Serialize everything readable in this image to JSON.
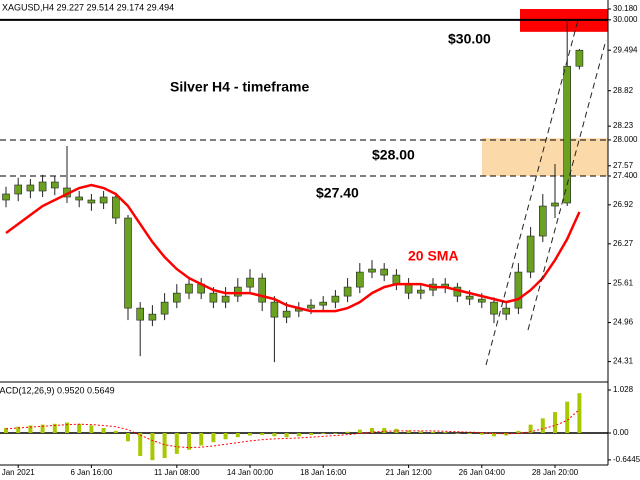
{
  "chart_data": [
    {
      "type": "candlestick",
      "header": "XAGUSD,H4  29.227 29.514 29.174 29.494",
      "title": "Silver H4 - timeframe",
      "categories": [
        null,
        "Jan 2021",
        null,
        null,
        null,
        null,
        null,
        "6 Jan 16:00",
        null,
        null,
        null,
        null,
        null,
        null,
        "11 Jan 08:00",
        null,
        null,
        null,
        null,
        null,
        "14 Jan 00:00",
        null,
        null,
        null,
        null,
        null,
        "18 Jan 16:00",
        null,
        null,
        null,
        null,
        null,
        null,
        "21 Jan 12:00",
        null,
        null,
        null,
        null,
        null,
        "26 Jan 04:00",
        null,
        null,
        null,
        null,
        null,
        "28 Jan 20:00",
        null,
        null
      ],
      "open": [
        27.0,
        27.1,
        27.25,
        27.15,
        27.3,
        27.2,
        27.05,
        27.0,
        26.95,
        27.05,
        26.7,
        25.2,
        25.0,
        25.1,
        25.3,
        25.45,
        25.6,
        25.45,
        25.3,
        25.4,
        25.55,
        25.7,
        25.3,
        25.05,
        25.15,
        25.2,
        25.25,
        25.3,
        25.4,
        25.55,
        25.8,
        25.85,
        25.75,
        25.6,
        25.45,
        25.5,
        25.6,
        25.55,
        25.4,
        25.35,
        25.3,
        25.1,
        25.2,
        25.8,
        26.4,
        26.9,
        26.95,
        29.227
      ],
      "high": [
        27.22,
        27.37,
        27.35,
        27.42,
        27.4,
        27.9,
        27.15,
        27.1,
        27.15,
        27.12,
        26.75,
        25.3,
        25.25,
        25.45,
        25.6,
        25.72,
        25.7,
        25.55,
        25.55,
        25.7,
        25.85,
        25.78,
        25.4,
        25.3,
        25.3,
        25.35,
        25.4,
        25.5,
        25.7,
        25.95,
        26.0,
        25.95,
        25.85,
        25.7,
        25.62,
        25.7,
        25.7,
        25.62,
        25.5,
        25.45,
        25.38,
        25.3,
        25.95,
        26.55,
        27.1,
        27.6,
        30.0,
        29.514
      ],
      "low": [
        26.88,
        26.98,
        27.03,
        27.05,
        27.08,
        26.95,
        26.88,
        26.82,
        26.85,
        26.6,
        25.0,
        24.4,
        24.9,
        25.0,
        25.2,
        25.35,
        25.35,
        25.2,
        25.2,
        25.3,
        25.45,
        25.15,
        24.3,
        24.95,
        25.05,
        25.1,
        25.15,
        25.2,
        25.3,
        25.45,
        25.7,
        25.65,
        25.5,
        25.35,
        25.35,
        25.4,
        25.45,
        25.3,
        25.25,
        25.2,
        24.95,
        25.0,
        25.1,
        25.7,
        26.3,
        26.7,
        26.9,
        29.174
      ],
      "close": [
        27.1,
        27.25,
        27.15,
        27.3,
        27.2,
        27.05,
        27.0,
        26.95,
        27.05,
        26.7,
        25.2,
        25.0,
        25.1,
        25.3,
        25.45,
        25.6,
        25.45,
        25.3,
        25.4,
        25.55,
        25.7,
        25.3,
        25.05,
        25.15,
        25.2,
        25.25,
        25.3,
        25.4,
        25.55,
        25.8,
        25.85,
        25.75,
        25.6,
        25.45,
        25.5,
        25.6,
        25.55,
        25.4,
        25.35,
        25.3,
        25.1,
        25.2,
        25.8,
        26.4,
        26.9,
        26.95,
        29.227,
        29.494
      ],
      "series": [
        {
          "name": "20 SMA",
          "color": "#ff0000",
          "values": [
            26.45,
            26.6,
            26.75,
            26.9,
            27.0,
            27.1,
            27.2,
            27.25,
            27.2,
            27.1,
            26.9,
            26.6,
            26.3,
            26.05,
            25.85,
            25.7,
            25.6,
            25.5,
            25.45,
            25.45,
            25.45,
            25.4,
            25.35,
            25.25,
            25.2,
            25.15,
            25.15,
            25.15,
            25.2,
            25.3,
            25.45,
            25.55,
            25.6,
            25.6,
            25.6,
            25.55,
            25.55,
            25.5,
            25.45,
            25.4,
            25.35,
            25.3,
            25.35,
            25.5,
            25.7,
            26.0,
            26.35,
            26.8
          ]
        }
      ],
      "levels": [
        {
          "value": 30.0,
          "label": "$30.00"
        },
        {
          "value": 28.0,
          "label": "$28.00"
        },
        {
          "value": 27.4,
          "label": "$27.40"
        }
      ],
      "zones": [
        {
          "from": 29.8,
          "to": 30.18,
          "color": "#ff0000"
        },
        {
          "from": 27.4,
          "to": 28.03,
          "color": "#fcd9a8"
        }
      ],
      "candle_color": "#6aa121",
      "ylim": [
        23.97,
        30.33
      ],
      "yticks": [
        {
          "value": 30.18,
          "label": "30.180"
        },
        {
          "value": 30.0,
          "label": "30.000"
        },
        29.494,
        28.82,
        28.23,
        {
          "value": 28.0,
          "label": "28.000"
        },
        27.57,
        {
          "value": 27.4,
          "label": "27.400"
        },
        26.92,
        26.27,
        25.61,
        24.96,
        24.31
      ]
    },
    {
      "type": "bar",
      "title": "MACD(12,26,9) 0.9520 0.5649",
      "color": "#a8c800",
      "values": [
        0.12,
        0.15,
        0.18,
        0.2,
        0.22,
        0.25,
        0.22,
        0.18,
        0.12,
        0.05,
        -0.2,
        -0.55,
        -0.65,
        -0.6,
        -0.5,
        -0.4,
        -0.3,
        -0.22,
        -0.15,
        -0.1,
        -0.06,
        -0.05,
        -0.08,
        -0.1,
        -0.08,
        -0.05,
        -0.02,
        0.0,
        0.03,
        0.08,
        0.12,
        0.12,
        0.1,
        0.06,
        0.04,
        0.03,
        0.02,
        0.0,
        -0.02,
        -0.04,
        -0.08,
        -0.06,
        0.05,
        0.2,
        0.35,
        0.5,
        0.75,
        0.952
      ],
      "signal": {
        "color": "#ff0000",
        "values": [
          0.1,
          0.12,
          0.14,
          0.16,
          0.18,
          0.2,
          0.21,
          0.2,
          0.18,
          0.15,
          0.08,
          -0.05,
          -0.18,
          -0.28,
          -0.33,
          -0.35,
          -0.34,
          -0.31,
          -0.27,
          -0.23,
          -0.19,
          -0.16,
          -0.14,
          -0.13,
          -0.12,
          -0.1,
          -0.08,
          -0.06,
          -0.04,
          -0.01,
          0.02,
          0.04,
          0.05,
          0.05,
          0.05,
          0.05,
          0.04,
          0.03,
          0.02,
          0.01,
          -0.01,
          -0.02,
          -0.01,
          0.03,
          0.1,
          0.18,
          0.3,
          0.5649
        ]
      },
      "ylim": [
        -0.766,
        1.22
      ],
      "yticks": [
        1.028,
        {
          "value": 0,
          "label": "0.00"
        },
        -0.6445
      ]
    }
  ]
}
